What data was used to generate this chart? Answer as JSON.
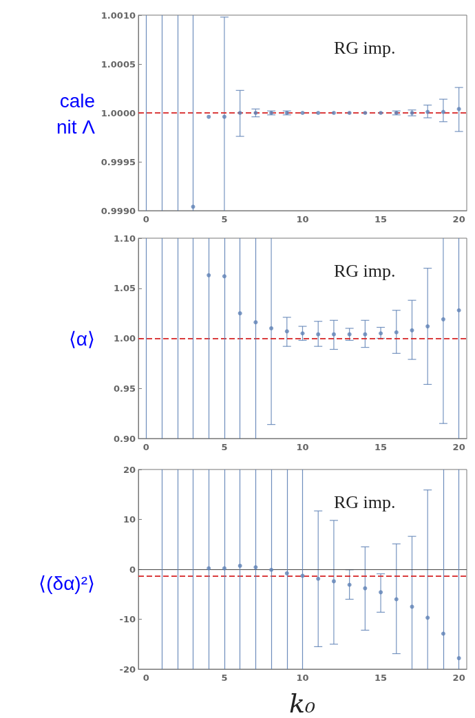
{
  "chart_data": [
    {
      "type": "scatter",
      "ylabel": "cale\nnit Λ",
      "annotations": [
        "RG imp."
      ],
      "marker": "circle",
      "color": "#5e81b5",
      "x": [
        3,
        4,
        5,
        6,
        7,
        8,
        9,
        10,
        11,
        12,
        13,
        14,
        15,
        16,
        17,
        18,
        19,
        20
      ],
      "values": [
        0.99904,
        0.99996,
        0.99996,
        1.0,
        1.0,
        1.0,
        1.0,
        1.0,
        1.0,
        1.0,
        1.0,
        1.0,
        1.0,
        1.0,
        1.0,
        1.00001,
        1.00001,
        1.00004
      ],
      "errors": [
        null,
        null,
        [
          0.999,
          1.00098
        ],
        [
          0.99976,
          1.00023
        ],
        [
          0.99996,
          1.00004
        ],
        [
          0.99998,
          1.00002
        ],
        [
          0.99998,
          1.00002
        ],
        null,
        null,
        null,
        null,
        null,
        null,
        [
          0.99998,
          1.00002
        ],
        [
          0.99997,
          1.00003
        ],
        [
          0.99995,
          1.00008
        ],
        [
          0.99991,
          1.00014
        ],
        [
          0.99981,
          1.00026
        ]
      ],
      "xlim": [
        -0.5,
        20.5
      ],
      "xticks": [
        0,
        5,
        10,
        15,
        20
      ],
      "ylim": [
        0.999,
        1.001
      ],
      "yticks": [
        {
          "value": 0.999,
          "label": "0.9990"
        },
        {
          "value": 0.9995,
          "label": "0.9995"
        },
        {
          "value": 1.0,
          "label": "1.0000"
        },
        {
          "value": 1.0005,
          "label": "1.0005"
        },
        {
          "value": 1.001,
          "label": "1.0010"
        }
      ],
      "ref_lines": [
        {
          "axis": "y",
          "value": 1.0,
          "color": "#d62728",
          "line_style": "dashed"
        },
        {
          "axis": "x",
          "value": 0,
          "color": "#5e81b5",
          "line_style": "solid"
        },
        {
          "axis": "x",
          "value": 1,
          "color": "#5e81b5",
          "line_style": "solid"
        },
        {
          "axis": "x",
          "value": 2,
          "color": "#5e81b5",
          "line_style": "solid"
        },
        {
          "axis": "x",
          "value": 3,
          "color": "#5e81b5",
          "line_style": "solid"
        }
      ]
    },
    {
      "type": "scatter",
      "ylabel": "⟨α⟩",
      "annotations": [
        "RG imp."
      ],
      "marker": "circle",
      "color": "#5e81b5",
      "x": [
        4,
        5,
        6,
        7,
        8,
        9,
        10,
        11,
        12,
        13,
        14,
        15,
        16,
        17,
        18,
        19,
        20
      ],
      "values": [
        1.063,
        1.062,
        1.025,
        1.016,
        1.01,
        1.007,
        1.005,
        1.004,
        1.004,
        1.004,
        1.004,
        1.005,
        1.006,
        1.008,
        1.012,
        1.019,
        1.028
      ],
      "errors": [
        null,
        null,
        null,
        null,
        [
          0.914,
          1.1
        ],
        [
          0.992,
          1.021
        ],
        [
          0.998,
          1.012
        ],
        [
          0.992,
          1.017
        ],
        [
          0.989,
          1.018
        ],
        [
          0.998,
          1.01
        ],
        [
          0.991,
          1.018
        ],
        [
          1.0,
          1.011
        ],
        [
          0.985,
          1.028
        ],
        [
          0.979,
          1.038
        ],
        [
          0.954,
          1.07
        ],
        [
          0.915,
          1.1
        ],
        null
      ],
      "xlim": [
        -0.5,
        20.5
      ],
      "xticks": [
        0,
        5,
        10,
        15,
        20
      ],
      "ylim": [
        0.9,
        1.1
      ],
      "yticks": [
        {
          "value": 0.9,
          "label": "0.90"
        },
        {
          "value": 0.95,
          "label": "0.95"
        },
        {
          "value": 1.0,
          "label": "1.00"
        },
        {
          "value": 1.05,
          "label": "1.05"
        },
        {
          "value": 1.1,
          "label": "1.10"
        }
      ],
      "ref_lines": [
        {
          "axis": "y",
          "value": 1.0,
          "color": "#d62728",
          "line_style": "dashed"
        },
        {
          "axis": "x",
          "value": 0,
          "color": "#5e81b5",
          "line_style": "solid"
        },
        {
          "axis": "x",
          "value": 1,
          "color": "#5e81b5",
          "line_style": "solid"
        },
        {
          "axis": "x",
          "value": 2,
          "color": "#5e81b5",
          "line_style": "solid"
        },
        {
          "axis": "x",
          "value": 3,
          "color": "#5e81b5",
          "line_style": "solid"
        },
        {
          "axis": "x",
          "value": 4,
          "color": "#5e81b5",
          "line_style": "solid"
        },
        {
          "axis": "x",
          "value": 5,
          "color": "#5e81b5",
          "line_style": "solid"
        },
        {
          "axis": "x",
          "value": 6,
          "color": "#5e81b5",
          "line_style": "solid"
        },
        {
          "axis": "x",
          "value": 7,
          "color": "#5e81b5",
          "line_style": "solid"
        },
        {
          "axis": "x",
          "value": 20,
          "color": "#5e81b5",
          "line_style": "solid"
        }
      ]
    },
    {
      "type": "scatter",
      "ylabel": "⟨(δα)²⟩",
      "xlabel": "k₀",
      "annotations": [
        "RG imp."
      ],
      "marker": "circle",
      "color": "#5e81b5",
      "x": [
        4,
        5,
        6,
        7,
        8,
        9,
        10,
        11,
        12,
        13,
        14,
        15,
        16,
        17,
        18,
        19,
        20
      ],
      "values": [
        0.2,
        0.2,
        0.7,
        0.4,
        -0.1,
        -0.8,
        -1.3,
        -1.9,
        -2.4,
        -3.1,
        -3.8,
        -4.6,
        -6.0,
        -7.5,
        -9.7,
        -12.9,
        -17.8
      ],
      "errors": [
        null,
        null,
        null,
        null,
        null,
        null,
        null,
        [
          -15.5,
          11.7
        ],
        [
          -15.0,
          9.8
        ],
        [
          -6.0,
          -0.1
        ],
        [
          -12.2,
          4.5
        ],
        [
          -8.6,
          -0.9
        ],
        [
          -16.9,
          5.1
        ],
        [
          -20,
          6.6
        ],
        [
          -20,
          15.9
        ],
        null,
        null
      ],
      "xlim": [
        -0.5,
        20.5
      ],
      "xticks": [
        0,
        5,
        10,
        15,
        20
      ],
      "ylim": [
        -20,
        20
      ],
      "yticks": [
        -20,
        -10,
        0,
        10,
        20
      ],
      "ref_lines": [
        {
          "axis": "y",
          "value": 0,
          "color": "#333333",
          "line_style": "solid"
        },
        {
          "axis": "y",
          "value": -1.3,
          "color": "#d62728",
          "line_style": "dashed"
        },
        {
          "axis": "x",
          "value": 1,
          "color": "#5e81b5",
          "line_style": "solid"
        },
        {
          "axis": "x",
          "value": 2,
          "color": "#5e81b5",
          "line_style": "solid"
        },
        {
          "axis": "x",
          "value": 3,
          "color": "#5e81b5",
          "line_style": "solid"
        },
        {
          "axis": "x",
          "value": 4,
          "color": "#5e81b5",
          "line_style": "solid"
        },
        {
          "axis": "x",
          "value": 5,
          "color": "#5e81b5",
          "line_style": "solid"
        },
        {
          "axis": "x",
          "value": 6,
          "color": "#5e81b5",
          "line_style": "solid"
        },
        {
          "axis": "x",
          "value": 7,
          "color": "#5e81b5",
          "line_style": "solid"
        },
        {
          "axis": "x",
          "value": 8,
          "color": "#5e81b5",
          "line_style": "solid"
        },
        {
          "axis": "x",
          "value": 9,
          "color": "#5e81b5",
          "line_style": "solid"
        },
        {
          "axis": "x",
          "value": 10,
          "color": "#5e81b5",
          "line_style": "solid"
        },
        {
          "axis": "x",
          "value": 19,
          "color": "#5e81b5",
          "line_style": "solid"
        },
        {
          "axis": "x",
          "value": 20,
          "color": "#5e81b5",
          "line_style": "solid"
        }
      ]
    }
  ]
}
